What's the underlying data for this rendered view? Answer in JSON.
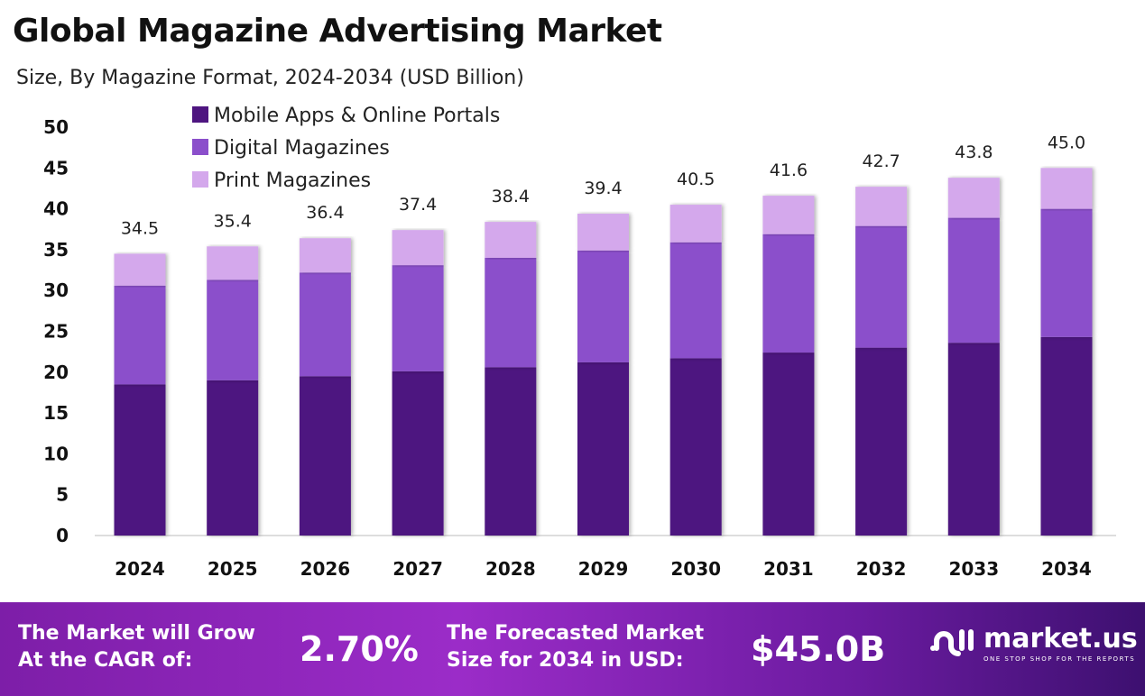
{
  "title": "Global Magazine Advertising Market",
  "subtitle": "Size, By Magazine Format, 2024-2034 (USD Billion)",
  "chart_data": {
    "type": "bar",
    "stacked": true,
    "categories": [
      "2024",
      "2025",
      "2026",
      "2027",
      "2028",
      "2029",
      "2030",
      "2031",
      "2032",
      "2033",
      "2034"
    ],
    "series": [
      {
        "name": "Mobile Apps & Online Portals",
        "color": "#4e1580",
        "values": [
          18.5,
          19.0,
          19.5,
          20.1,
          20.6,
          21.2,
          21.7,
          22.4,
          23.0,
          23.6,
          24.3
        ]
      },
      {
        "name": "Digital Magazines",
        "color": "#8b4fcb",
        "values": [
          12.1,
          12.3,
          12.7,
          13.0,
          13.4,
          13.7,
          14.2,
          14.5,
          14.9,
          15.3,
          15.7
        ]
      },
      {
        "name": "Print Magazines",
        "color": "#d4a8ec",
        "values": [
          3.9,
          4.1,
          4.2,
          4.3,
          4.4,
          4.5,
          4.6,
          4.7,
          4.8,
          4.9,
          5.0
        ]
      }
    ],
    "totals": [
      "34.5",
      "35.4",
      "36.4",
      "37.4",
      "38.4",
      "39.4",
      "40.5",
      "41.6",
      "42.7",
      "43.8",
      "45.0"
    ],
    "yticks": [
      0,
      5,
      10,
      15,
      20,
      25,
      30,
      35,
      40,
      45,
      50
    ],
    "ylim": [
      0,
      50
    ],
    "grid": false,
    "legend": "top-left"
  },
  "footer": {
    "cagr_label": "The Market will Grow At the CAGR of:",
    "cagr_label_line1": "The Market will Grow",
    "cagr_label_line2": "At the CAGR of:",
    "cagr_value": "2.70%",
    "forecast_label_line1": "The Forecasted Market",
    "forecast_label_line2": "Size for 2034 in USD:",
    "forecast_value": "$45.0B",
    "logo_text": "market.us",
    "logo_tagline": "ONE STOP SHOP FOR THE REPORTS"
  }
}
